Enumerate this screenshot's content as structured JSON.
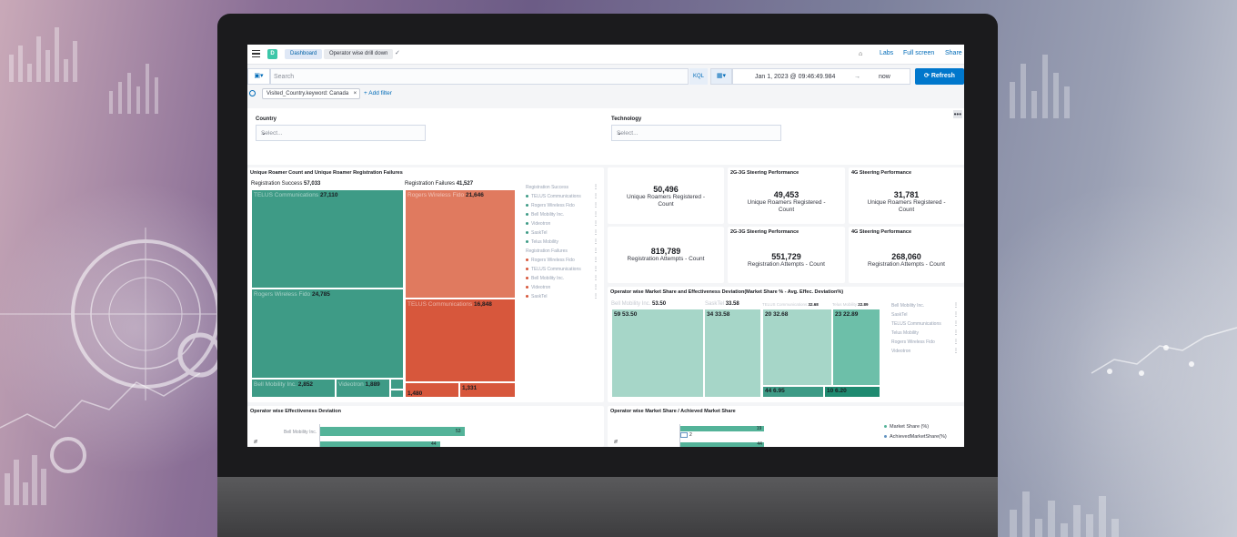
{
  "colors": {
    "teal_dark": "#3e9b86",
    "teal": "#54b399",
    "teal_light": "#a6d6c8",
    "red_dark": "#d7573c",
    "red": "#e07a5f",
    "blue_accent": "#0077cc"
  },
  "topbar": {
    "app_badge": "D",
    "breadcrumbs": [
      "Dashboard",
      "Operator wise drill down"
    ],
    "labs": "Labs",
    "fullscreen": "Full screen",
    "share": "Share"
  },
  "query": {
    "search_placeholder": "Search",
    "language": "KQL",
    "date_from": "Jan 1, 2023 @ 09:46:49.984",
    "date_arrow": "→",
    "date_to": "now",
    "refresh_label": "Refresh"
  },
  "filters": {
    "pill": "Visited_Country.keyword: Canada",
    "add_filter": "+ Add filter"
  },
  "controls": {
    "country_label": "Country",
    "country_placeholder": "Select...",
    "technology_label": "Technology",
    "technology_placeholder": "Select..."
  },
  "treemap_panel": {
    "title": "Unique Roamer Count and Unique Roamer Registration Failures",
    "success_header_label": "Registration Success",
    "success_header_value": "57,033",
    "failure_header_label": "Registration Failures",
    "failure_header_value": "41,527",
    "success_cells": [
      {
        "name": "TELUS Communications",
        "value": "27,110"
      },
      {
        "name": "Rogers Wireless Fido",
        "value": "24,785"
      },
      {
        "name": "Bell Mobility Inc.",
        "value": "2,852"
      },
      {
        "name": "Videotron",
        "value": "1,889"
      }
    ],
    "failure_cells": [
      {
        "name": "Rogers Wireless Fido",
        "value": "21,646"
      },
      {
        "name": "TELUS Communications",
        "value": "16,848"
      },
      {
        "name": "",
        "value": "1,480"
      },
      {
        "name": "",
        "value": "1,331"
      }
    ],
    "legend_success_header": "Registration Success",
    "legend_success": [
      "TELUS Communications",
      "Rogers Wireless Fido",
      "Bell Mobility Inc.",
      "Videotron",
      "SaskTel",
      "Telus Mobility"
    ],
    "legend_failure_header": "Registration Failures",
    "legend_failure": [
      "Rogers Wireless Fido",
      "TELUS Communications",
      "Bell Mobility Inc.",
      "Videotron",
      "SaskTel"
    ]
  },
  "metrics": [
    {
      "title": "",
      "value": "50,496",
      "label": "Unique Roamers Registered - Count"
    },
    {
      "title": "2G-3G Steering Performance",
      "value": "49,453",
      "label": "Unique Roamers Registered - Count"
    },
    {
      "title": "4G Steering Performance",
      "value": "31,781",
      "label": "Unique Roamers Registered - Count"
    },
    {
      "title": "",
      "value": "819,789",
      "label": "Registration Attempts - Count"
    },
    {
      "title": "2G-3G Steering Performance",
      "value": "551,729",
      "label": "Registration Attempts - Count"
    },
    {
      "title": "4G Steering Performance",
      "value": "268,060",
      "label": "Registration Attempts - Count"
    }
  ],
  "market_panel": {
    "title": "Operator wise Market Share and Effectiveness Deviation(Market Share % - Avg. Effec. Deviation%)",
    "groups": [
      {
        "name": "Bell Mobility Inc.",
        "total": "53.50",
        "cells": [
          {
            "k": "59",
            "v": "53.50"
          }
        ]
      },
      {
        "name": "SaskTel",
        "total": "33.58",
        "cells": [
          {
            "k": "34",
            "v": "33.58"
          }
        ]
      },
      {
        "name": "TELUS Communications",
        "total": "32.68",
        "cells": [
          {
            "k": "20",
            "v": "32.68"
          },
          {
            "k": "44",
            "v": "6.95"
          }
        ]
      },
      {
        "name": "Telus Mobility",
        "total": "22.89",
        "cells": [
          {
            "k": "23",
            "v": "22.89"
          },
          {
            "k": "10",
            "v": "6.20"
          }
        ]
      }
    ],
    "legend": [
      "Bell Mobility Inc.",
      "SaskTel",
      "TELUS Communications",
      "Telus Mobility",
      "Rogers Wireless Fido",
      "Videotron"
    ]
  },
  "effectiveness_panel": {
    "title": "Operator wise Effectiveness Deviation",
    "rows": [
      {
        "label": "Bell Mobility Inc.",
        "value": 53
      },
      {
        "label": "",
        "value": 44
      }
    ],
    "axis_mark": "%"
  },
  "achieved_panel": {
    "title": "Operator wise Market Share / Achieved Market Share",
    "rows": [
      {
        "market_share": 19,
        "achieved": 2
      },
      {
        "market_share": 44,
        "achieved": null
      }
    ],
    "axis_mark": "%",
    "legend": [
      "Market Share (%)",
      "AchievedMarketShare(%)"
    ],
    "legend_colors": [
      "#54b399",
      "#6092c0"
    ]
  }
}
